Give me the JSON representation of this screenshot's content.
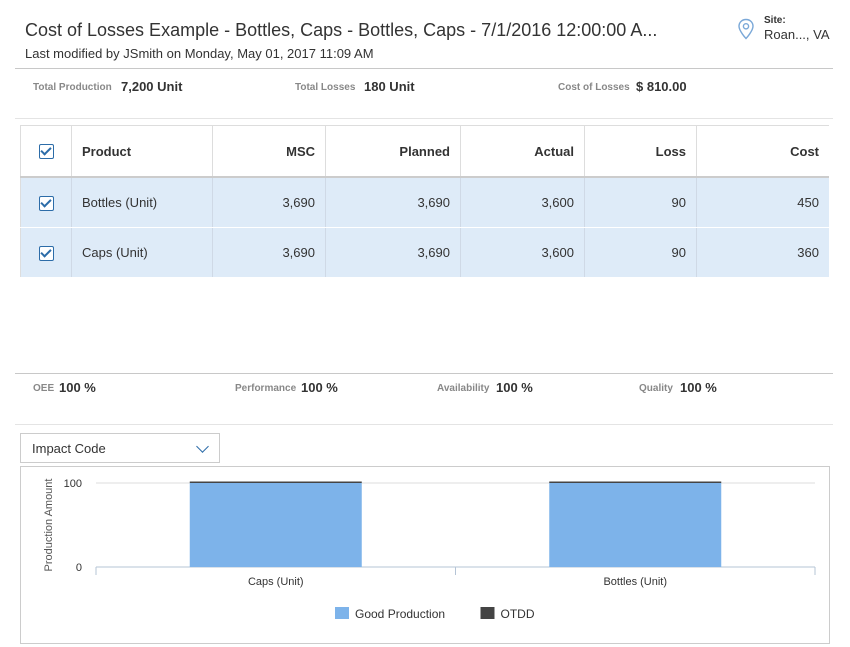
{
  "header": {
    "title": "Cost of Losses Example - Bottles, Caps - Bottles, Caps - 7/1/2016 12:00:00 A...",
    "subtitle": "Last modified by JSmith on Monday, May 01, 2017 11:09 AM",
    "site_label": "Site:",
    "site_value": "Roan..., VA",
    "site_icon": "map-pin-icon"
  },
  "summary": {
    "total_production_label": "Total Production",
    "total_production_value": "7,200 Unit",
    "total_losses_label": "Total Losses",
    "total_losses_value": "180 Unit",
    "cost_of_losses_label": "Cost of Losses",
    "cost_of_losses_value": "$ 810.00"
  },
  "table": {
    "columns": [
      "Product",
      "MSC",
      "Planned",
      "Actual",
      "Loss",
      "Cost"
    ],
    "rows": [
      {
        "checked": true,
        "product": "Bottles (Unit)",
        "msc": "3,690",
        "planned": "3,690",
        "actual": "3,600",
        "loss": "90",
        "cost": "450"
      },
      {
        "checked": true,
        "product": "Caps (Unit)",
        "msc": "3,690",
        "planned": "3,690",
        "actual": "3,600",
        "loss": "90",
        "cost": "360"
      }
    ]
  },
  "metrics": {
    "oee_label": "OEE",
    "oee_value": "100 %",
    "performance_label": "Performance",
    "performance_value": "100 %",
    "availability_label": "Availability",
    "availability_value": "100 %",
    "quality_label": "Quality",
    "quality_value": "100 %"
  },
  "dropdown": {
    "selected": "Impact Code"
  },
  "colors": {
    "good_production": "#7db3ea",
    "otdd": "#444444",
    "accent": "#2c6ca8",
    "row_bg": "#deebf8"
  },
  "chart_data": {
    "type": "bar",
    "categories": [
      "Caps (Unit)",
      "Bottles (Unit)"
    ],
    "series": [
      {
        "name": "Good Production",
        "values": [
          100,
          100
        ]
      },
      {
        "name": "OTDD",
        "values": [
          0,
          0
        ]
      }
    ],
    "ylabel": "Production Amount",
    "yticks": [
      0,
      100
    ],
    "ylim": [
      0,
      100
    ],
    "stacked": true,
    "legend": "bottom",
    "grid": true
  }
}
